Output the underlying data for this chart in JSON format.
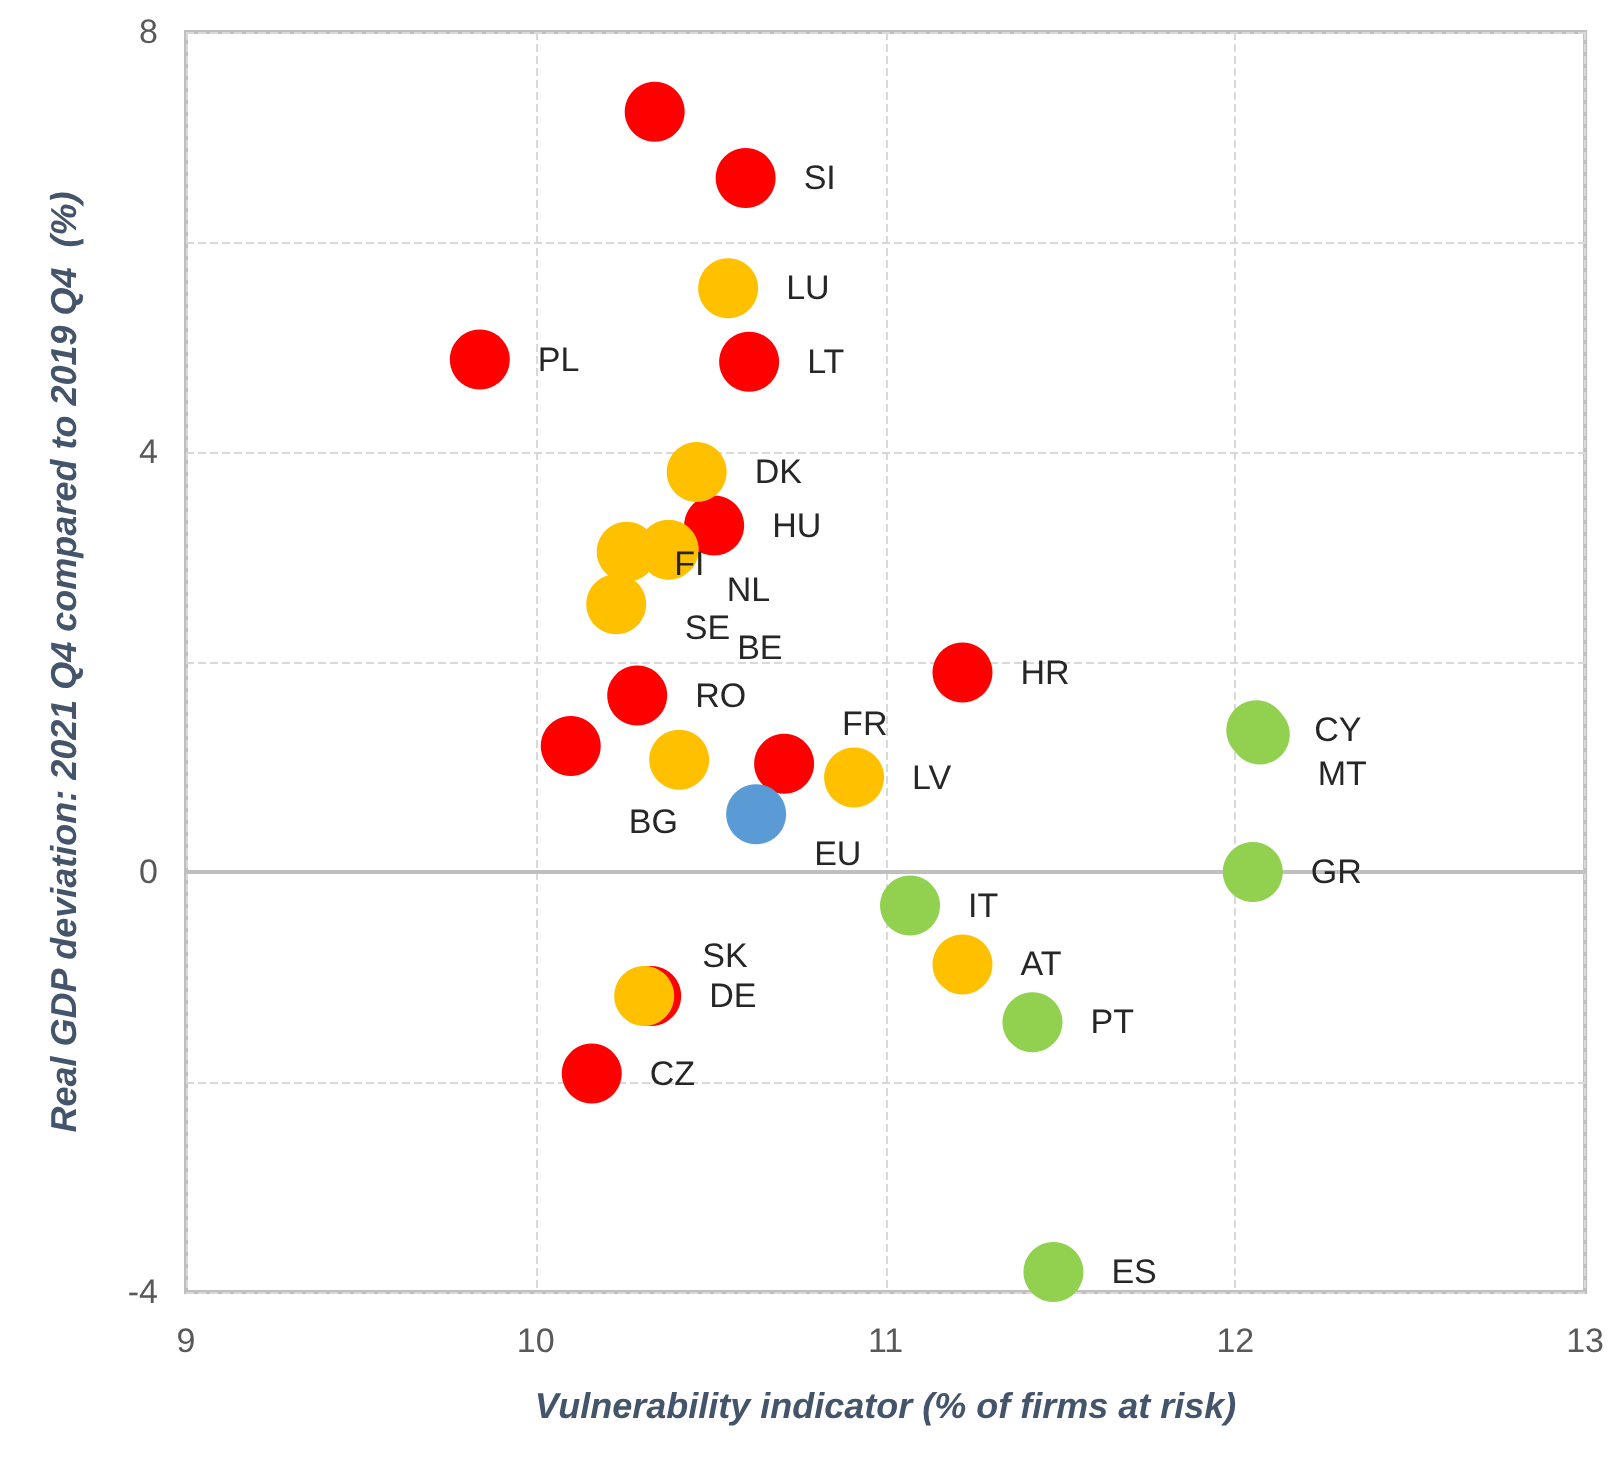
{
  "chart_data": {
    "type": "scatter",
    "xlabel": "Vulnerability indicator (% of firms at risk)",
    "ylabel": "Real GDP deviation: 2021 Q4 compared to 2019 Q4  (%)",
    "xlim": [
      9,
      13
    ],
    "xticks": [
      9,
      10,
      11,
      12,
      13
    ],
    "ylim": [
      -4,
      8
    ],
    "yticks": [
      -4,
      0,
      4,
      8
    ],
    "grid": true,
    "marker": "circle",
    "series": [
      {
        "color": "#ff0000",
        "x": [
          10.34,
          10.6,
          9.84,
          10.61,
          10.51,
          10.29,
          10.1,
          10.71,
          11.22,
          10.33,
          10.16
        ],
        "values": [
          7.24,
          6.61,
          4.88,
          4.86,
          3.3,
          1.68,
          1.2,
          1.03,
          1.9,
          -1.18,
          -1.92
        ],
        "value_labels": [
          null,
          "SI",
          "PL",
          "LT",
          "HU",
          "RO",
          "BG",
          "FR",
          "HR",
          "DE",
          "CZ"
        ]
      },
      {
        "color": "#ffc000",
        "x": [
          10.55,
          10.46,
          10.26,
          10.23,
          10.38,
          10.41,
          10.91,
          11.22,
          10.31
        ],
        "values": [
          5.56,
          3.81,
          3.05,
          2.55,
          3.07,
          1.07,
          0.9,
          -0.88,
          -1.18
        ],
        "value_labels": [
          "LU",
          "DK",
          "SE",
          "FI",
          "NL",
          "BE",
          "LV",
          "AT",
          "SK"
        ]
      },
      {
        "color": "#5b9bd5",
        "x": [
          10.63
        ],
        "values": [
          0.55
        ],
        "value_labels": [
          "EU"
        ]
      },
      {
        "color": "#92d050",
        "x": [
          11.07,
          11.42,
          11.48,
          12.05,
          12.06,
          12.07
        ],
        "values": [
          -0.32,
          -1.43,
          -3.81,
          0,
          1.35,
          1.31
        ],
        "value_labels": [
          "IT",
          "PT",
          "ES",
          "GR",
          "CY",
          "MT"
        ]
      }
    ]
  }
}
